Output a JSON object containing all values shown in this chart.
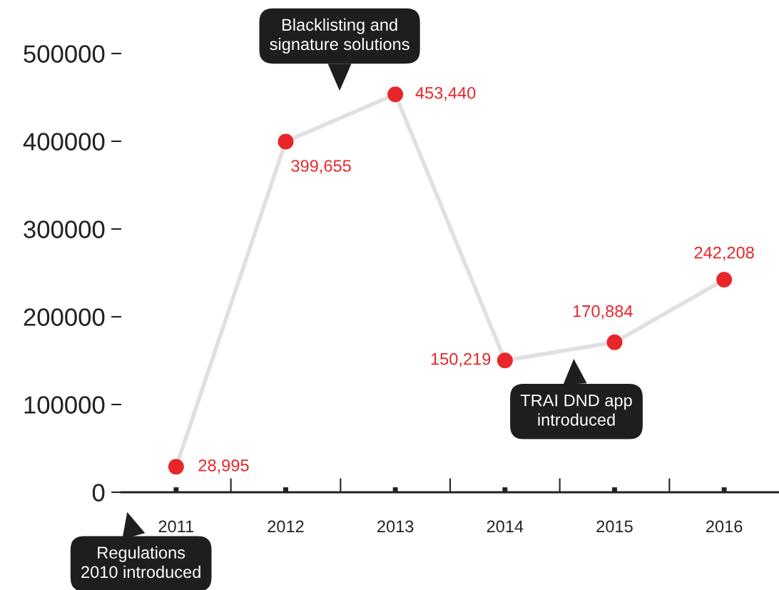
{
  "chart_data": {
    "type": "line",
    "categories": [
      "2011",
      "2012",
      "2013",
      "2014",
      "2015",
      "2016"
    ],
    "series": [
      {
        "color": "#e8262a",
        "values": [
          28995,
          399655,
          453440,
          150219,
          170884,
          242208
        ]
      }
    ],
    "marker": "circle",
    "value_labels": [
      "28,995",
      "399,655",
      "453,440",
      "150,219",
      "170,884",
      "242,208"
    ],
    "ylim": [
      0,
      500000
    ],
    "yticks": [
      0,
      100000,
      200000,
      300000,
      400000,
      500000
    ],
    "grid": false,
    "legend": false,
    "annotations": [
      "Blacklisting and\nsignature solutions",
      "TRAI DND app\nintroduced",
      "Regulations\n2010 introduced"
    ]
  }
}
